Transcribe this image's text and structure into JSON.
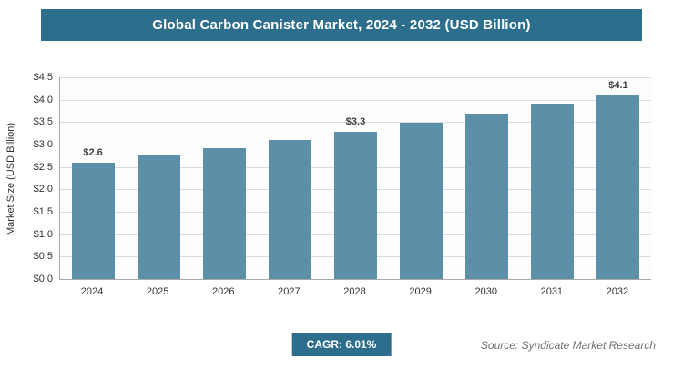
{
  "title": "Global Carbon Canister Market, 2024 - 2032 (USD Billion)",
  "footer": {
    "cagr": "CAGR: 6.01%",
    "source": "Source: Syndicate Market Research"
  },
  "colors": {
    "banner": "#2d6e8d",
    "bar": "#5e8fa9",
    "gridline": "#dcdcdc",
    "axis": "#a8a8a8"
  },
  "chart_data": {
    "type": "bar",
    "title": "Global Carbon Canister Market, 2024 - 2032 (USD Billion)",
    "categories": [
      "2024",
      "2025",
      "2026",
      "2027",
      "2028",
      "2029",
      "2030",
      "2031",
      "2032"
    ],
    "values": [
      2.6,
      2.76,
      2.92,
      3.1,
      3.28,
      3.48,
      3.69,
      3.91,
      4.1
    ],
    "bar_labels": [
      "$2.6",
      null,
      null,
      null,
      "$3.3",
      null,
      null,
      null,
      "$4.1"
    ],
    "xlabel": "",
    "ylabel": "Market Size (USD Billion)",
    "ylim": [
      0,
      4.5
    ],
    "ytick_step": 0.5,
    "ytick_labels": [
      "$0.0",
      "$0.5",
      "$1.0",
      "$1.5",
      "$2.0",
      "$2.5",
      "$3.0",
      "$3.5",
      "$4.0",
      "$4.5"
    ],
    "grid": "horizontal",
    "legend": "none",
    "annotations": [
      "CAGR: 6.01%"
    ]
  }
}
